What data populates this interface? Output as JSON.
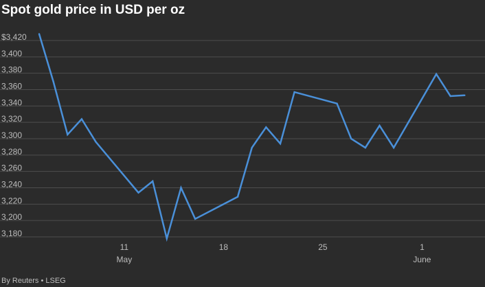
{
  "title": "Spot gold price in USD per oz",
  "source": "By Reuters • LSEG",
  "colors": {
    "background": "#2b2b2b",
    "gridline": "#4e4e4e",
    "line": "#4a90d9",
    "text": "#bdbdbd"
  },
  "chart_data": {
    "type": "line",
    "title": "Spot gold price in USD per oz",
    "xlabel": "",
    "ylabel": "",
    "ylim": [
      3180,
      3420
    ],
    "xlim": [
      "2025-05-05",
      "2025-06-05"
    ],
    "grid": true,
    "y_ticks": [
      3180,
      3200,
      3220,
      3240,
      3260,
      3280,
      3300,
      3320,
      3340,
      3360,
      3380,
      3400,
      3420
    ],
    "y_tick_labels": [
      "3,180",
      "3,200",
      "3,220",
      "3,240",
      "3,260",
      "3,280",
      "3,300",
      "3,320",
      "3,340",
      "3,360",
      "3,380",
      "3,400",
      "$3,420"
    ],
    "x_ticks": [
      {
        "x": "2025-05-11",
        "label": "11",
        "sublabel": "May"
      },
      {
        "x": "2025-05-18",
        "label": "18",
        "sublabel": ""
      },
      {
        "x": "2025-05-25",
        "label": "25",
        "sublabel": ""
      },
      {
        "x": "2025-06-01",
        "label": "1",
        "sublabel": "June"
      }
    ],
    "series": [
      {
        "points": [
          {
            "x": "2025-05-05",
            "y": 3428
          },
          {
            "x": "2025-05-06",
            "y": 3370
          },
          {
            "x": "2025-05-07",
            "y": 3305
          },
          {
            "x": "2025-05-08",
            "y": 3324
          },
          {
            "x": "2025-05-09",
            "y": 3296
          },
          {
            "x": "2025-05-12",
            "y": 3234
          },
          {
            "x": "2025-05-13",
            "y": 3248
          },
          {
            "x": "2025-05-14",
            "y": 3178
          },
          {
            "x": "2025-05-15",
            "y": 3240
          },
          {
            "x": "2025-05-16",
            "y": 3202
          },
          {
            "x": "2025-05-19",
            "y": 3229
          },
          {
            "x": "2025-05-20",
            "y": 3289
          },
          {
            "x": "2025-05-21",
            "y": 3314
          },
          {
            "x": "2025-05-22",
            "y": 3294
          },
          {
            "x": "2025-05-23",
            "y": 3357
          },
          {
            "x": "2025-05-26",
            "y": 3343
          },
          {
            "x": "2025-05-27",
            "y": 3300
          },
          {
            "x": "2025-05-28",
            "y": 3289
          },
          {
            "x": "2025-05-29",
            "y": 3316
          },
          {
            "x": "2025-05-30",
            "y": 3289
          },
          {
            "x": "2025-06-02",
            "y": 3379
          },
          {
            "x": "2025-06-03",
            "y": 3352
          },
          {
            "x": "2025-06-04",
            "y": 3353
          }
        ]
      }
    ]
  }
}
